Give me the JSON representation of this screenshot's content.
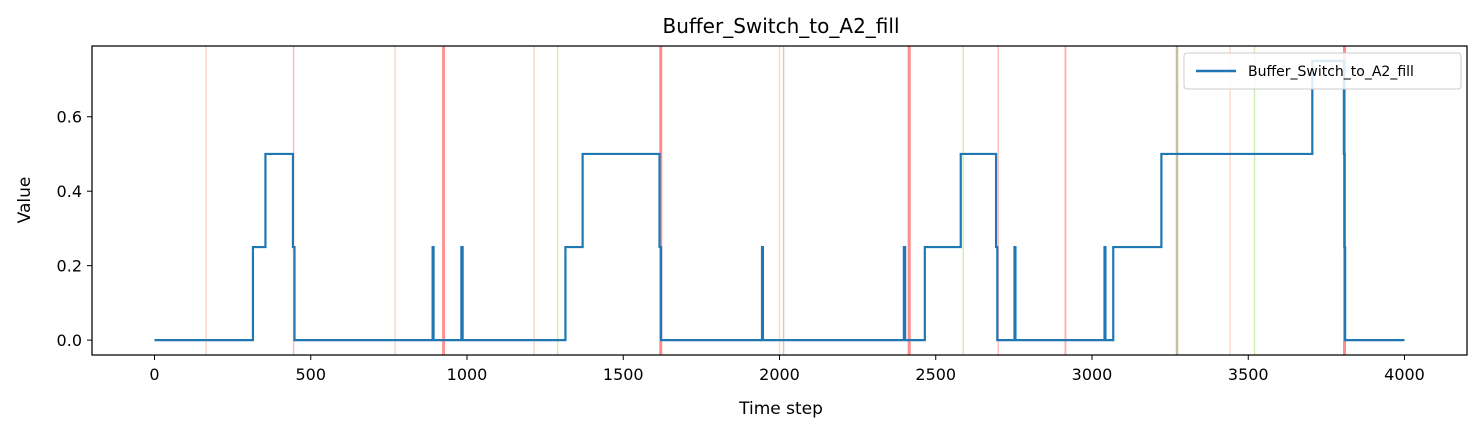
{
  "chart_data": {
    "type": "line",
    "title": "Buffer_Switch_to_A2_fill",
    "xlabel": "Time step",
    "ylabel": "Value",
    "xlim": [
      -200,
      4200
    ],
    "ylim": [
      -0.04,
      0.79
    ],
    "xticks": [
      0,
      500,
      1000,
      1500,
      2000,
      2500,
      3000,
      3500,
      4000
    ],
    "xtick_labels": [
      "0",
      "500",
      "1000",
      "1500",
      "2000",
      "2500",
      "3000",
      "3500",
      "4000"
    ],
    "yticks": [
      0.0,
      0.2,
      0.4,
      0.6
    ],
    "ytick_labels": [
      "0.0",
      "0.2",
      "0.4",
      "0.6"
    ],
    "grid": false,
    "legend_position": "top-right",
    "series": [
      {
        "name": "Buffer_Switch_to_A2_fill",
        "color": "#1f77b4",
        "x": [
          0,
          315,
          315,
          355,
          355,
          443,
          443,
          448,
          448,
          890,
          890,
          893,
          893,
          982,
          982,
          986,
          986,
          1315,
          1315,
          1370,
          1370,
          1616,
          1616,
          1621,
          1621,
          1944,
          1944,
          1947,
          1947,
          2398,
          2398,
          2402,
          2402,
          2465,
          2465,
          2580,
          2580,
          2693,
          2693,
          2697,
          2697,
          2752,
          2752,
          2755,
          2755,
          3040,
          3040,
          3043,
          3043,
          3068,
          3068,
          3222,
          3222,
          3705,
          3705,
          3806,
          3806,
          3808,
          3808,
          3810,
          3810,
          4000
        ],
        "y": [
          0,
          0,
          0.25,
          0.25,
          0.5,
          0.5,
          0.25,
          0.25,
          0,
          0,
          0.25,
          0.25,
          0,
          0,
          0.25,
          0.25,
          0,
          0,
          0.25,
          0.25,
          0.5,
          0.5,
          0.25,
          0.25,
          0,
          0,
          0.25,
          0.25,
          0,
          0,
          0.25,
          0.25,
          0,
          0,
          0.25,
          0.25,
          0.5,
          0.5,
          0.25,
          0.25,
          0,
          0,
          0.25,
          0.25,
          0,
          0,
          0.25,
          0.25,
          0,
          0,
          0.25,
          0.25,
          0.5,
          0.5,
          0.75,
          0.75,
          0.5,
          0.5,
          0.25,
          0.25,
          0,
          0
        ]
      }
    ],
    "event_lines": [
      {
        "x": 165,
        "color": "#f4a582",
        "opacity": 0.45,
        "width": 1.5
      },
      {
        "x": 445,
        "color": "#ff7f7f",
        "opacity": 0.55,
        "width": 1.5
      },
      {
        "x": 770,
        "color": "#f4a582",
        "opacity": 0.45,
        "width": 1.5
      },
      {
        "x": 925,
        "color": "#ff6666",
        "opacity": 0.7,
        "width": 3
      },
      {
        "x": 1215,
        "color": "#f4a582",
        "opacity": 0.45,
        "width": 1.5
      },
      {
        "x": 1290,
        "color": "#a6d96a",
        "opacity": 0.5,
        "width": 1.5
      },
      {
        "x": 1620,
        "color": "#ff6666",
        "opacity": 0.75,
        "width": 3
      },
      {
        "x": 2000,
        "color": "#f4a582",
        "opacity": 0.4,
        "width": 1.5
      },
      {
        "x": 2013,
        "color": "#b8b08a",
        "opacity": 0.6,
        "width": 1.5
      },
      {
        "x": 2415,
        "color": "#ff6666",
        "opacity": 0.75,
        "width": 3
      },
      {
        "x": 2588,
        "color": "#a6d96a",
        "opacity": 0.5,
        "width": 1.5
      },
      {
        "x": 2700,
        "color": "#ff7f7f",
        "opacity": 0.5,
        "width": 1.5
      },
      {
        "x": 2915,
        "color": "#ff7f7f",
        "opacity": 0.6,
        "width": 2
      },
      {
        "x": 3272,
        "color": "#b8b08a",
        "opacity": 0.8,
        "width": 2.5
      },
      {
        "x": 3442,
        "color": "#f4a582",
        "opacity": 0.4,
        "width": 1.5
      },
      {
        "x": 3520,
        "color": "#a6d96a",
        "opacity": 0.5,
        "width": 1.5
      },
      {
        "x": 3808,
        "color": "#ff6666",
        "opacity": 0.75,
        "width": 3
      }
    ]
  }
}
